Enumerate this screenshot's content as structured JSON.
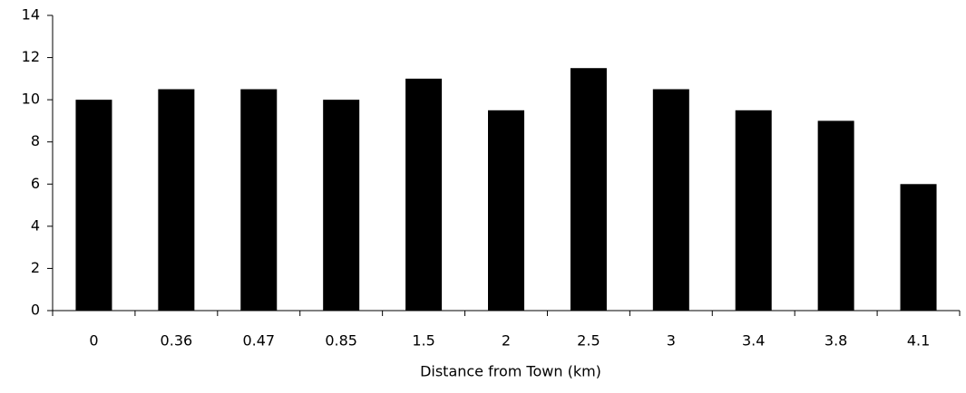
{
  "chart_data": {
    "type": "bar",
    "x_label": "Distance from Town (km)",
    "categories": [
      "0",
      "0.36",
      "0.47",
      "0.85",
      "1.5",
      "2",
      "2.5",
      "3",
      "3.4",
      "3.8",
      "4.1"
    ],
    "values": [
      10,
      10.5,
      10.5,
      10,
      11,
      9.5,
      11.5,
      10.5,
      9.5,
      9,
      6
    ],
    "color": "#000000",
    "ylim": [
      0,
      14
    ],
    "yticks": [
      0,
      2,
      4,
      6,
      8,
      10,
      12,
      14
    ],
    "grid": false
  }
}
